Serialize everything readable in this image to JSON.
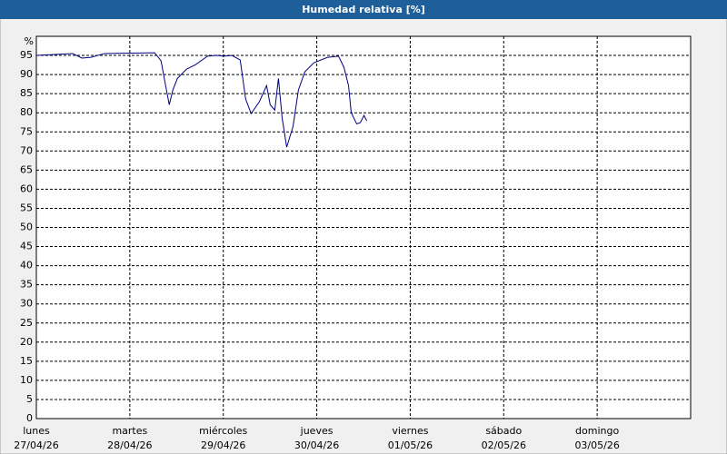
{
  "chart_data": {
    "type": "line",
    "title": "Humedad relativa [%]",
    "ylabel": "%",
    "x": [
      0,
      0.39,
      0.487,
      0.584,
      0.73,
      1.266,
      1.334,
      1.383,
      1.422,
      1.461,
      1.509,
      1.607,
      1.704,
      1.831,
      1.928,
      2.006,
      2.093,
      2.181,
      2.239,
      2.298,
      2.386,
      2.463,
      2.502,
      2.551,
      2.59,
      2.629,
      2.678,
      2.746,
      2.804,
      2.872,
      2.97,
      3.116,
      3.233,
      3.291,
      3.34,
      3.369,
      3.427,
      3.466,
      3.505,
      3.535
    ],
    "series": [
      {
        "color": "#000080",
        "values": [
          95,
          95.5,
          94.3,
          94.5,
          95.5,
          95.7,
          93.6,
          87.1,
          82.1,
          86,
          89,
          91.4,
          92.6,
          94.8,
          95,
          94.8,
          95,
          93.8,
          83.6,
          79.8,
          82.9,
          87.1,
          82.1,
          80.7,
          89,
          78.8,
          71,
          76.4,
          86,
          90.7,
          93.1,
          94.5,
          94.8,
          91.9,
          87.1,
          80,
          77.1,
          77.4,
          79.3,
          77.9
        ]
      }
    ],
    "xlim": [
      0,
      7
    ],
    "xticks": [
      {
        "value": 0,
        "label": "lunes",
        "date": "27/04/26"
      },
      {
        "value": 1,
        "label": "martes",
        "date": "28/04/26"
      },
      {
        "value": 2,
        "label": "miércoles",
        "date": "29/04/26"
      },
      {
        "value": 3,
        "label": "jueves",
        "date": "30/04/26"
      },
      {
        "value": 4,
        "label": "viernes",
        "date": "01/05/26"
      },
      {
        "value": 5,
        "label": "sábado",
        "date": "02/05/26"
      },
      {
        "value": 6,
        "label": "domingo",
        "date": "03/05/26"
      }
    ],
    "ylim": [
      0,
      100
    ],
    "yticks": [
      0,
      5,
      10,
      15,
      20,
      25,
      30,
      35,
      40,
      45,
      50,
      55,
      60,
      65,
      70,
      75,
      80,
      85,
      90,
      95
    ],
    "grid": true
  }
}
